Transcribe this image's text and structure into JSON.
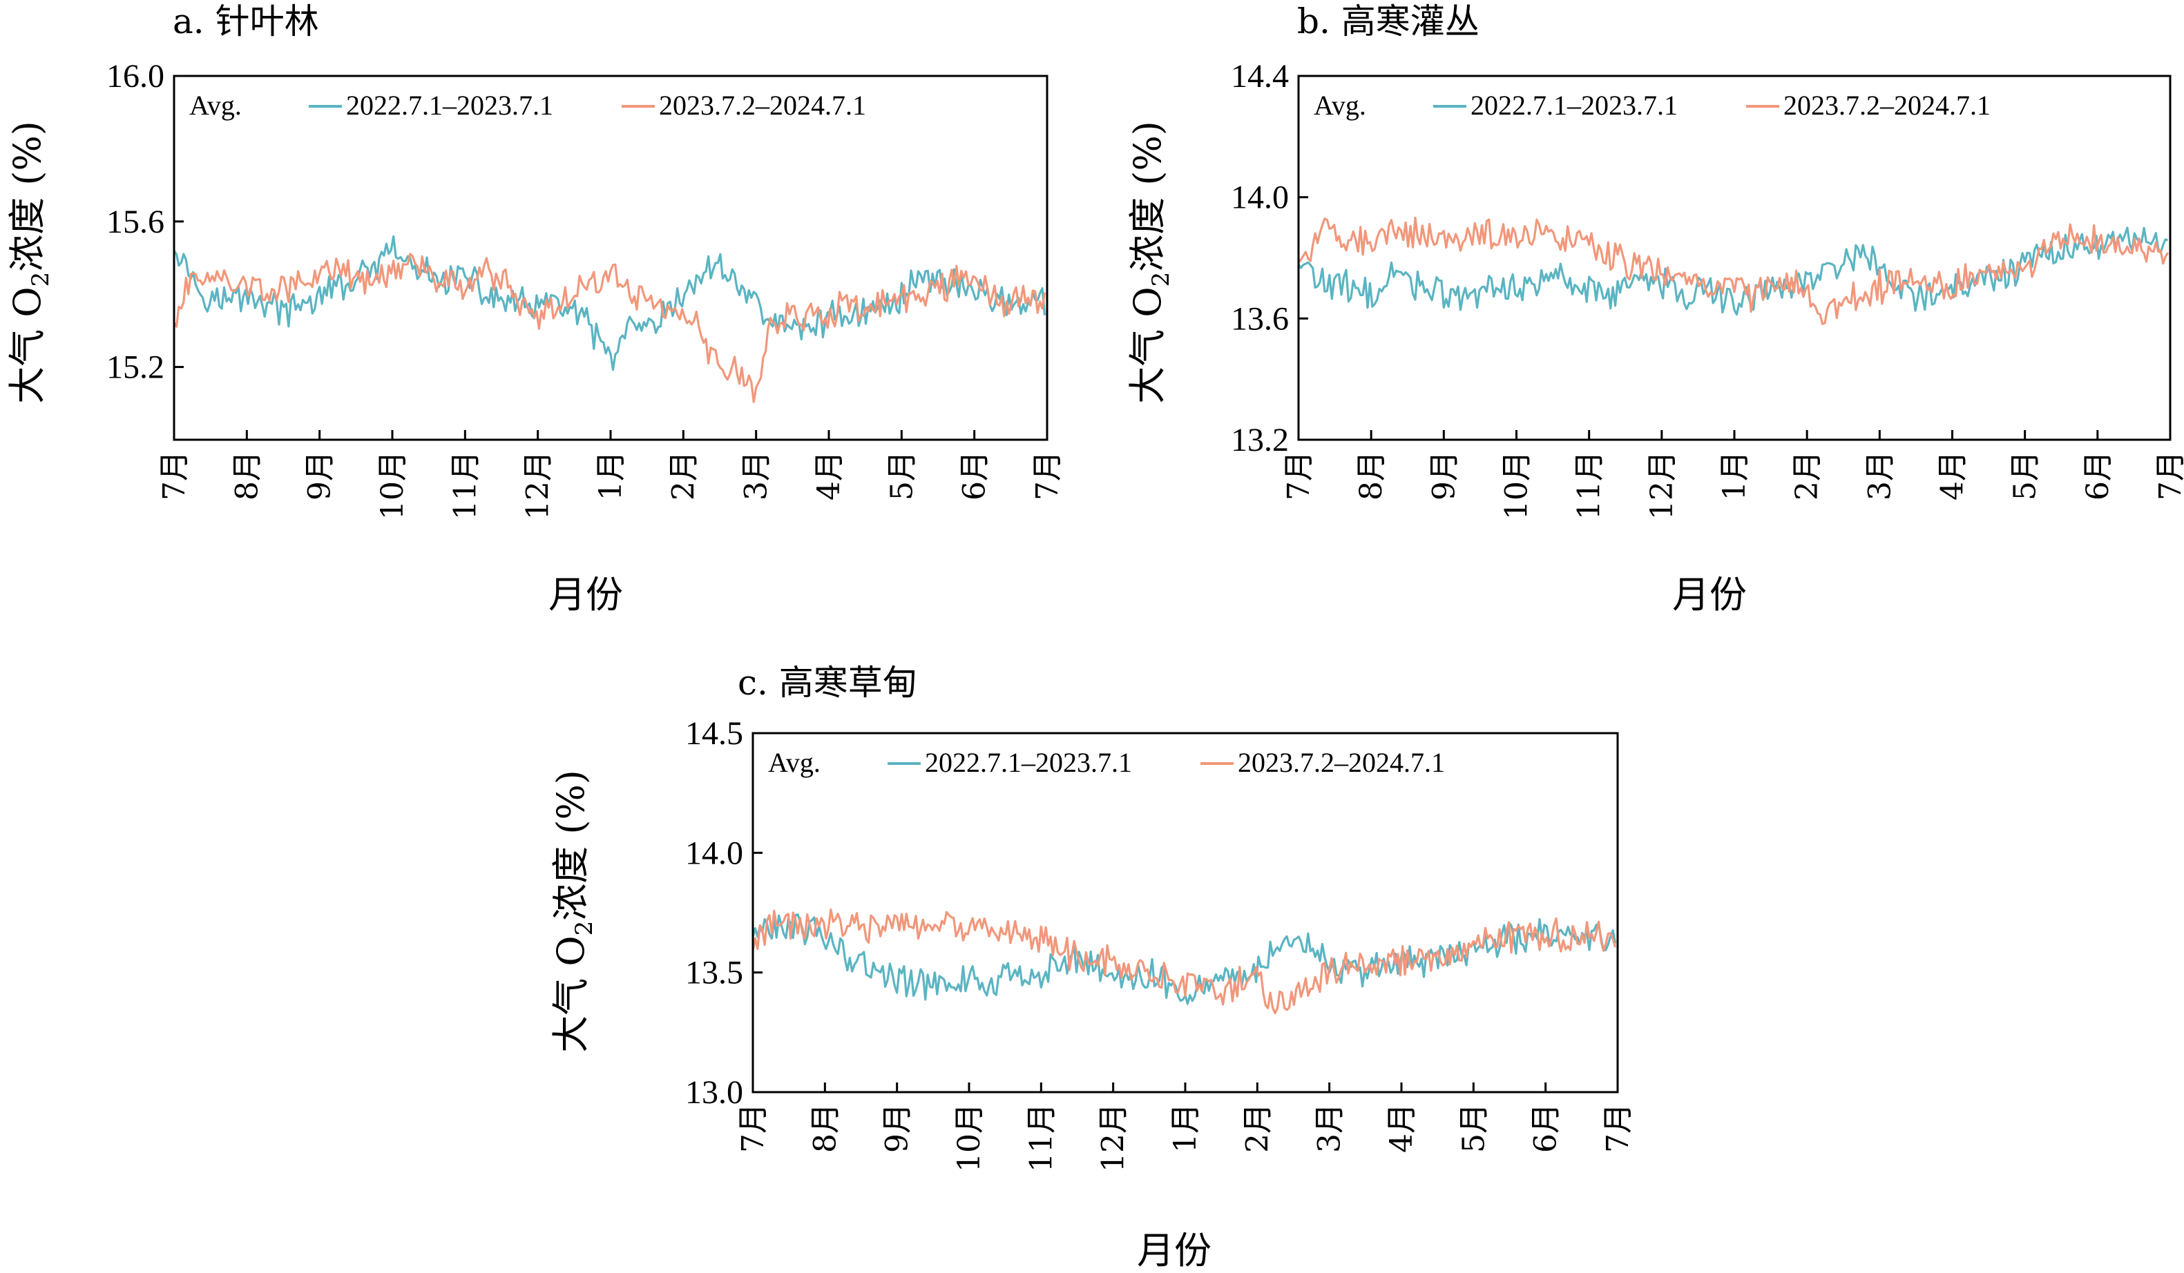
{
  "colors": {
    "series1": "#5BB4C2",
    "series2": "#F1977B",
    "axis": "#000000"
  },
  "months": [
    "7月",
    "8月",
    "9月",
    "10月",
    "11月",
    "12月",
    "1月",
    "2月",
    "3月",
    "4月",
    "5月",
    "6月",
    "7月"
  ],
  "xlabel": "月份",
  "ylabel": "大气 O2浓度 (%)",
  "ylabel_main": "大气 O",
  "ylabel_sub": "2",
  "ylabel_tail": "浓度 (%)",
  "legend_prefix": "Avg.",
  "series_names": [
    "2022.7.1–2023.7.1",
    "2023.7.2–2024.7.1"
  ],
  "chart_data": [
    {
      "type": "line",
      "title": "a. 针叶林",
      "xlabel": "月份",
      "ylabel": "大气 O2浓度 (%)",
      "xlim": [
        0,
        366
      ],
      "x_tick_labels": [
        "7月",
        "8月",
        "9月",
        "10月",
        "11月",
        "12月",
        "1月",
        "2月",
        "3月",
        "4月",
        "5月",
        "6月",
        "7月"
      ],
      "ylim": [
        15.0,
        16.0
      ],
      "yticks": [
        15.2,
        15.6,
        16.0
      ],
      "ytick_labels": [
        "15.2",
        "15.6",
        "16.0"
      ],
      "legend": "top",
      "series": [
        {
          "name": "2022.7.1–2023.7.1",
          "color": "#5BB4C2",
          "x": [
            0,
            10,
            20,
            31,
            40,
            50,
            62,
            70,
            80,
            92,
            100,
            110,
            122,
            130,
            140,
            153,
            160,
            170,
            184,
            190,
            200,
            212,
            220,
            230,
            243,
            250,
            260,
            273,
            280,
            290,
            304,
            310,
            320,
            334,
            345,
            355,
            365
          ],
          "y": [
            15.55,
            15.42,
            15.38,
            15.4,
            15.37,
            15.35,
            15.4,
            15.42,
            15.45,
            15.52,
            15.47,
            15.44,
            15.45,
            15.4,
            15.38,
            15.36,
            15.38,
            15.34,
            15.22,
            15.3,
            15.3,
            15.38,
            15.45,
            15.48,
            15.38,
            15.33,
            15.3,
            15.33,
            15.35,
            15.35,
            15.38,
            15.45,
            15.44,
            15.42,
            15.38,
            15.38,
            15.37
          ]
        },
        {
          "name": "2023.7.2–2024.7.1",
          "color": "#F1977B",
          "x": [
            0,
            10,
            20,
            31,
            40,
            50,
            62,
            70,
            80,
            92,
            100,
            110,
            122,
            130,
            140,
            153,
            160,
            170,
            184,
            190,
            200,
            212,
            220,
            230,
            243,
            250,
            260,
            273,
            280,
            290,
            304,
            310,
            320,
            334,
            345,
            355,
            365
          ],
          "y": [
            15.33,
            15.46,
            15.44,
            15.42,
            15.4,
            15.43,
            15.45,
            15.46,
            15.44,
            15.46,
            15.5,
            15.45,
            15.4,
            15.48,
            15.42,
            15.34,
            15.36,
            15.42,
            15.45,
            15.42,
            15.38,
            15.35,
            15.3,
            15.2,
            15.15,
            15.3,
            15.36,
            15.32,
            15.38,
            15.36,
            15.37,
            15.4,
            15.42,
            15.44,
            15.38,
            15.39,
            15.38
          ]
        }
      ]
    },
    {
      "type": "line",
      "title": "b. 高寒灌丛",
      "xlabel": "月份",
      "ylabel": "大气 O2浓度 (%)",
      "xlim": [
        0,
        366
      ],
      "x_tick_labels": [
        "7月",
        "8月",
        "9月",
        "10月",
        "11月",
        "12月",
        "1月",
        "2月",
        "3月",
        "4月",
        "5月",
        "6月",
        "7月"
      ],
      "ylim": [
        13.2,
        14.4
      ],
      "yticks": [
        13.2,
        13.6,
        14.0,
        14.4
      ],
      "ytick_labels": [
        "13.2",
        "13.6",
        "14.0",
        "14.4"
      ],
      "legend": "top",
      "series": [
        {
          "name": "2022.7.1–2023.7.1",
          "color": "#5BB4C2",
          "x": [
            0,
            10,
            20,
            31,
            40,
            50,
            62,
            70,
            80,
            92,
            100,
            110,
            122,
            130,
            140,
            153,
            160,
            170,
            184,
            190,
            200,
            212,
            220,
            230,
            243,
            250,
            260,
            273,
            280,
            290,
            304,
            310,
            320,
            334,
            345,
            355,
            365
          ],
          "y": [
            13.78,
            13.72,
            13.7,
            13.68,
            13.74,
            13.72,
            13.68,
            13.66,
            13.7,
            13.7,
            13.72,
            13.75,
            13.7,
            13.68,
            13.72,
            13.72,
            13.68,
            13.7,
            13.65,
            13.68,
            13.7,
            13.72,
            13.75,
            13.8,
            13.78,
            13.7,
            13.68,
            13.7,
            13.72,
            13.74,
            13.76,
            13.8,
            13.82,
            13.84,
            13.86,
            13.85,
            13.84
          ]
        },
        {
          "name": "2023.7.2–2024.7.1",
          "color": "#F1977B",
          "x": [
            0,
            10,
            20,
            31,
            40,
            50,
            62,
            70,
            80,
            92,
            100,
            110,
            122,
            130,
            140,
            153,
            160,
            170,
            184,
            190,
            200,
            212,
            220,
            230,
            243,
            250,
            260,
            273,
            280,
            290,
            304,
            310,
            320,
            334,
            345,
            355,
            365
          ],
          "y": [
            13.8,
            13.88,
            13.87,
            13.86,
            13.88,
            13.88,
            13.87,
            13.86,
            13.88,
            13.87,
            13.88,
            13.86,
            13.84,
            13.82,
            13.78,
            13.76,
            13.74,
            13.72,
            13.7,
            13.66,
            13.72,
            13.72,
            13.62,
            13.65,
            13.7,
            13.72,
            13.72,
            13.7,
            13.72,
            13.75,
            13.76,
            13.8,
            13.86,
            13.85,
            13.84,
            13.82,
            13.82
          ]
        }
      ]
    },
    {
      "type": "line",
      "title": "c. 高寒草甸",
      "xlabel": "月份",
      "ylabel": "大气 O2浓度 (%)",
      "xlim": [
        0,
        366
      ],
      "x_tick_labels": [
        "7月",
        "8月",
        "9月",
        "10月",
        "11月",
        "12月",
        "1月",
        "2月",
        "3月",
        "4月",
        "5月",
        "6月",
        "7月"
      ],
      "ylim": [
        13.0,
        14.5
      ],
      "yticks": [
        13.0,
        13.5,
        14.0,
        14.5
      ],
      "ytick_labels": [
        "13.0",
        "13.5",
        "14.0",
        "14.5"
      ],
      "legend": "top",
      "series": [
        {
          "name": "2022.7.1–2023.7.1",
          "color": "#5BB4C2",
          "x": [
            0,
            10,
            20,
            31,
            40,
            50,
            62,
            70,
            80,
            92,
            100,
            110,
            122,
            130,
            140,
            153,
            160,
            170,
            184,
            190,
            200,
            212,
            220,
            230,
            243,
            250,
            260,
            273,
            280,
            290,
            304,
            310,
            320,
            334,
            345,
            355,
            365
          ],
          "y": [
            13.66,
            13.68,
            13.69,
            13.66,
            13.58,
            13.52,
            13.46,
            13.45,
            13.47,
            13.47,
            13.45,
            13.48,
            13.5,
            13.55,
            13.55,
            13.5,
            13.46,
            13.5,
            13.42,
            13.44,
            13.48,
            13.5,
            13.6,
            13.62,
            13.55,
            13.5,
            13.5,
            13.55,
            13.54,
            13.56,
            13.58,
            13.62,
            13.64,
            13.66,
            13.68,
            13.66,
            13.64
          ]
        },
        {
          "name": "2023.7.2–2024.7.1",
          "color": "#F1977B",
          "x": [
            0,
            10,
            20,
            31,
            40,
            50,
            62,
            70,
            80,
            92,
            100,
            110,
            122,
            130,
            140,
            153,
            160,
            170,
            184,
            190,
            200,
            212,
            220,
            230,
            243,
            250,
            260,
            273,
            280,
            290,
            304,
            310,
            320,
            334,
            345,
            355,
            365
          ],
          "y": [
            13.62,
            13.7,
            13.68,
            13.7,
            13.7,
            13.68,
            13.7,
            13.68,
            13.7,
            13.68,
            13.7,
            13.68,
            13.64,
            13.6,
            13.56,
            13.55,
            13.48,
            13.5,
            13.46,
            13.44,
            13.42,
            13.48,
            13.36,
            13.42,
            13.48,
            13.52,
            13.52,
            13.55,
            13.56,
            13.58,
            13.6,
            13.66,
            13.65,
            13.66,
            13.64,
            13.66,
            13.65
          ]
        }
      ]
    }
  ]
}
